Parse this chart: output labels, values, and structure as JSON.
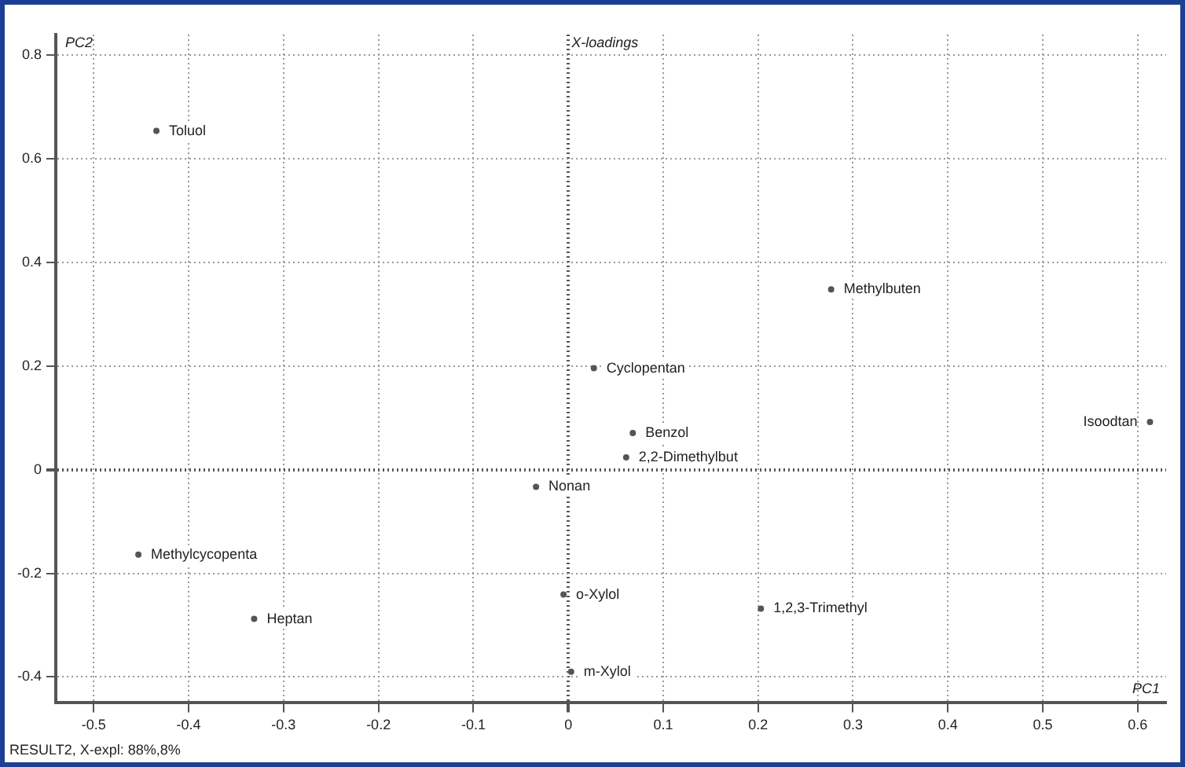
{
  "chart_data": {
    "type": "scatter",
    "title": "X-loadings",
    "xlabel": "PC1",
    "ylabel": "PC2",
    "series": [
      {
        "color": "#555555",
        "x": [
          -0.434,
          0.277,
          0.027,
          0.068,
          0.061,
          0.613,
          -0.034,
          -0.453,
          -0.331,
          -0.005,
          0.203,
          0.003
        ],
        "values": [
          0.654,
          0.348,
          0.196,
          0.071,
          0.024,
          0.092,
          -0.033,
          -0.164,
          -0.288,
          -0.241,
          -0.268,
          -0.39
        ]
      }
    ],
    "annotations": [
      {
        "text": "Toluol",
        "x": -0.434,
        "y": 0.654
      },
      {
        "text": "Methylbuten",
        "x": 0.277,
        "y": 0.348
      },
      {
        "text": "Cyclopentan",
        "x": 0.027,
        "y": 0.196
      },
      {
        "text": "Benzol",
        "x": 0.068,
        "y": 0.071
      },
      {
        "text": "2,2-Dimethylbut",
        "x": 0.061,
        "y": 0.024
      },
      {
        "text": "Isoodtan",
        "x": 0.613,
        "y": 0.092
      },
      {
        "text": "Nonan",
        "x": -0.034,
        "y": -0.033
      },
      {
        "text": "Methylcycopenta",
        "x": -0.453,
        "y": -0.164
      },
      {
        "text": "Heptan",
        "x": -0.331,
        "y": -0.288
      },
      {
        "text": "o-Xylol",
        "x": -0.005,
        "y": -0.241
      },
      {
        "text": "1,2,3-Trimethyl",
        "x": 0.203,
        "y": -0.268
      },
      {
        "text": "m-Xylol",
        "x": 0.003,
        "y": -0.39
      },
      "RESULT2, X-expl: 88%,8%"
    ],
    "xlim": [
      -0.54,
      0.63
    ],
    "ylim": [
      -0.45,
      0.84
    ],
    "xticks": [
      -0.5,
      -0.4,
      -0.3,
      -0.2,
      -0.1,
      0,
      0.1,
      0.2,
      0.3,
      0.4,
      0.5,
      0.6
    ],
    "yticks": [
      -0.4,
      -0.2,
      0,
      0.2,
      0.4,
      0.6,
      0.8
    ],
    "grid": true,
    "marker": "circle"
  }
}
